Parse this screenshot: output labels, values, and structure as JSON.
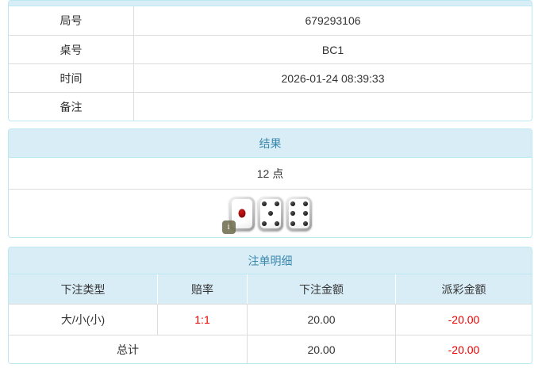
{
  "info": {
    "rows": [
      {
        "label": "局号",
        "value": "679293106"
      },
      {
        "label": "桌号",
        "value": "BC1"
      },
      {
        "label": "时间",
        "value": "2026-01-24 08:39:33"
      },
      {
        "label": "备注",
        "value": ""
      }
    ]
  },
  "result": {
    "title": "结果",
    "points": "12 点",
    "dice": [
      1,
      5,
      6
    ],
    "info_badge_label": "i"
  },
  "bets": {
    "title": "注单明细",
    "columns": [
      "下注类型",
      "赔率",
      "下注金额",
      "派彩金额"
    ],
    "rows": [
      {
        "type": "大/小(小)",
        "odds": "1:1",
        "bet_amount": "20.00",
        "payout": "-20.00"
      }
    ],
    "total": {
      "label": "总计",
      "bet_amount": "20.00",
      "payout": "-20.00"
    }
  },
  "colors": {
    "header_bg": "#d9edf7",
    "header_text": "#3a87ad",
    "panel_border": "#bce8f1",
    "divider": "#dddddd",
    "text": "#333333",
    "negative": "#e60000"
  }
}
